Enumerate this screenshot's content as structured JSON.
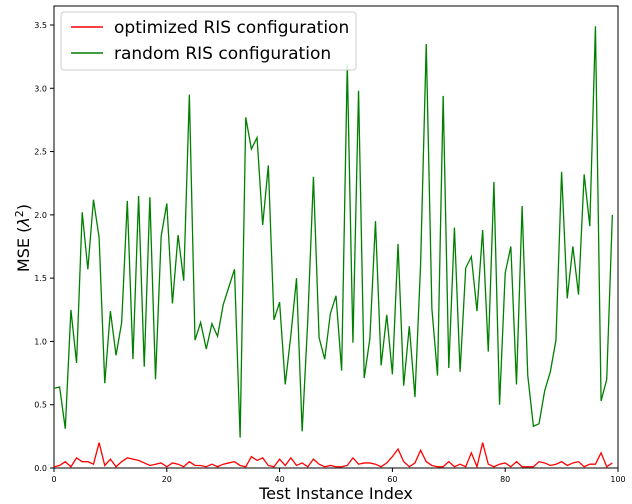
{
  "chart_data": {
    "type": "line",
    "xlabel": "Test Instance Index",
    "ylabel": "MSE (λ²)",
    "ylabel_base": "MSE (",
    "ylabel_lambda": "λ",
    "ylabel_exp": "2",
    "ylabel_close": ")",
    "xlim": [
      0,
      100
    ],
    "ylim": [
      0,
      3.65
    ],
    "x_ticks": [
      0,
      20,
      40,
      60,
      80,
      100
    ],
    "x_tick_labels": [
      "0",
      "20",
      "40",
      "60",
      "80",
      "100"
    ],
    "y_ticks": [
      0.0,
      0.5,
      1.0,
      1.5,
      2.0,
      2.5,
      3.0,
      3.5
    ],
    "y_tick_labels": [
      "0.0",
      "0.5",
      "1.0",
      "1.5",
      "2.0",
      "2.5",
      "3.0",
      "3.5"
    ],
    "grid": false,
    "legend_position": "top-left",
    "series": [
      {
        "name": "optimized RIS configuration",
        "color": "#ff0000",
        "x": [
          0,
          1,
          2,
          3,
          4,
          5,
          6,
          7,
          8,
          9,
          10,
          11,
          12,
          13,
          14,
          15,
          16,
          17,
          18,
          19,
          20,
          21,
          22,
          23,
          24,
          25,
          26,
          27,
          28,
          29,
          30,
          31,
          32,
          33,
          34,
          35,
          36,
          37,
          38,
          39,
          40,
          41,
          42,
          43,
          44,
          45,
          46,
          47,
          48,
          49,
          50,
          51,
          52,
          53,
          54,
          55,
          56,
          57,
          58,
          59,
          60,
          61,
          62,
          63,
          64,
          65,
          66,
          67,
          68,
          69,
          70,
          71,
          72,
          73,
          74,
          75,
          76,
          77,
          78,
          79,
          80,
          81,
          82,
          83,
          84,
          85,
          86,
          87,
          88,
          89,
          90,
          91,
          92,
          93,
          94,
          95,
          96,
          97,
          98,
          99
        ],
        "values": [
          0.01,
          0.02,
          0.05,
          0.01,
          0.08,
          0.05,
          0.05,
          0.03,
          0.2,
          0.02,
          0.07,
          0.01,
          0.05,
          0.08,
          0.07,
          0.06,
          0.04,
          0.02,
          0.03,
          0.04,
          0.01,
          0.04,
          0.03,
          0.01,
          0.05,
          0.02,
          0.02,
          0.01,
          0.03,
          0.01,
          0.03,
          0.04,
          0.05,
          0.02,
          0.01,
          0.09,
          0.06,
          0.08,
          0.02,
          0.01,
          0.07,
          0.02,
          0.08,
          0.02,
          0.04,
          0.01,
          0.07,
          0.03,
          0.01,
          0.02,
          0.01,
          0.01,
          0.02,
          0.08,
          0.03,
          0.04,
          0.04,
          0.03,
          0.01,
          0.04,
          0.09,
          0.15,
          0.05,
          0.01,
          0.04,
          0.14,
          0.05,
          0.02,
          0.01,
          0.01,
          0.05,
          0.01,
          0.03,
          0.01,
          0.12,
          0.01,
          0.2,
          0.03,
          0.01,
          0.03,
          0.04,
          0.01,
          0.05,
          0.01,
          0.01,
          0.01,
          0.05,
          0.04,
          0.02,
          0.03,
          0.05,
          0.02,
          0.04,
          0.05,
          0.01,
          0.03,
          0.03,
          0.12,
          0.01,
          0.04
        ]
      },
      {
        "name": "random RIS configuration",
        "color": "#008000",
        "x": [
          0,
          1,
          2,
          3,
          4,
          5,
          6,
          7,
          8,
          9,
          10,
          11,
          12,
          13,
          14,
          15,
          16,
          17,
          18,
          19,
          20,
          21,
          22,
          23,
          24,
          25,
          26,
          27,
          28,
          29,
          30,
          31,
          32,
          33,
          34,
          35,
          36,
          37,
          38,
          39,
          40,
          41,
          42,
          43,
          44,
          45,
          46,
          47,
          48,
          49,
          50,
          51,
          52,
          53,
          54,
          55,
          56,
          57,
          58,
          59,
          60,
          61,
          62,
          63,
          64,
          65,
          66,
          67,
          68,
          69,
          70,
          71,
          72,
          73,
          74,
          75,
          76,
          77,
          78,
          79,
          80,
          81,
          82,
          83,
          84,
          85,
          86,
          87,
          88,
          89,
          90,
          91,
          92,
          93,
          94,
          95,
          96,
          97,
          98,
          99
        ],
        "values": [
          0.63,
          0.64,
          0.31,
          1.25,
          0.83,
          2.02,
          1.57,
          2.12,
          1.82,
          0.67,
          1.24,
          0.89,
          1.15,
          2.11,
          0.86,
          2.15,
          0.8,
          2.14,
          0.7,
          1.83,
          2.09,
          1.3,
          1.84,
          1.48,
          2.95,
          1.01,
          1.15,
          0.94,
          1.14,
          1.04,
          1.29,
          1.43,
          1.57,
          0.24,
          2.77,
          2.52,
          2.61,
          1.92,
          2.39,
          1.17,
          1.31,
          0.66,
          1.05,
          1.5,
          0.29,
          1.17,
          2.3,
          1.03,
          0.86,
          1.22,
          1.36,
          0.77,
          3.19,
          0.99,
          2.98,
          0.71,
          1.02,
          1.95,
          0.81,
          1.21,
          0.74,
          1.77,
          0.65,
          1.12,
          0.56,
          1.61,
          3.35,
          1.26,
          0.73,
          2.94,
          0.79,
          1.9,
          0.76,
          1.58,
          1.67,
          1.24,
          1.88,
          0.92,
          2.26,
          0.5,
          1.54,
          1.75,
          0.66,
          2.07,
          0.73,
          0.33,
          0.35,
          0.61,
          0.76,
          1.01,
          2.34,
          1.34,
          1.75,
          1.37,
          2.32,
          1.91,
          3.49,
          0.53,
          0.7,
          2.0
        ]
      }
    ]
  }
}
